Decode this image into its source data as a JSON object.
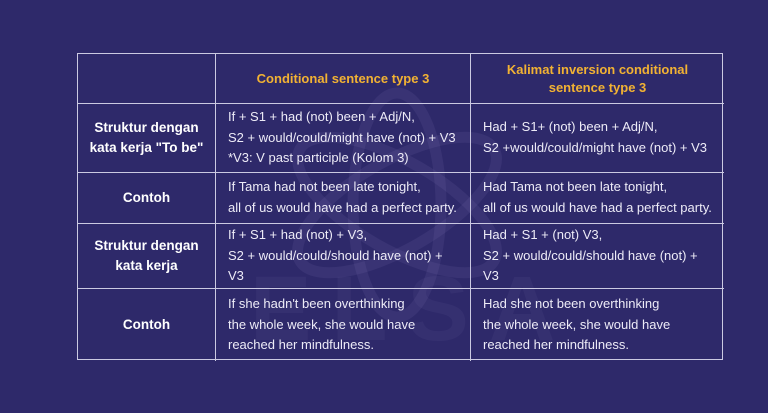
{
  "theme": {
    "background": "#2E296A",
    "grid_border": "#CBC9E2",
    "header_text": "#F2B233",
    "label_text": "#FFFFFF",
    "body_text": "#EDEBF7"
  },
  "watermark": {
    "icon": "atom-logo",
    "text": "ELSA"
  },
  "table": {
    "header": {
      "blank": "",
      "conditional": "Conditional sentence type 3",
      "inversion": "Kalimat inversion conditional\nsentence type 3"
    },
    "rows": [
      {
        "label": "Struktur dengan\nkata kerja \"To be\"",
        "conditional": "If + S1 + had (not) been + Adj/N,\nS2 + would/could/might have (not) + V3\n*V3: V past participle (Kolom 3)",
        "inversion": "Had + S1+ (not) been + Adj/N,\nS2 +would/could/might have (not) + V3"
      },
      {
        "label": "Contoh",
        "conditional": "If Tama had not been late tonight,\nall of us would have had a perfect party.",
        "inversion": "Had Tama not been late tonight,\nall of us would have had a perfect party."
      },
      {
        "label": "Struktur dengan\nkata kerja",
        "conditional": "If + S1 + had (not) + V3,\nS2 + would/could/should have (not) + V3",
        "inversion": "Had + S1 + (not) V3,\nS2 + would/could/should have (not) + V3"
      },
      {
        "label": "Contoh",
        "conditional": "If she hadn't been overthinking\nthe whole week, she would have\nreached her mindfulness.",
        "inversion": "Had she not been overthinking\nthe whole week, she would have\nreached her mindfulness."
      }
    ]
  }
}
